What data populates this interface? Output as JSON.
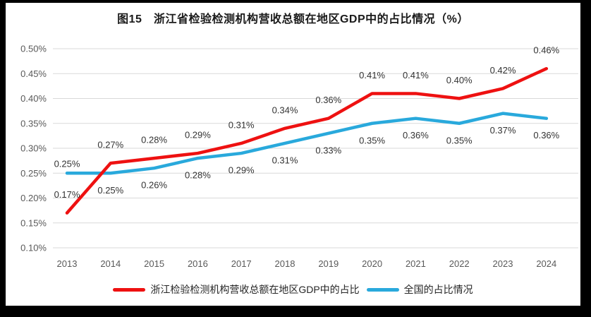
{
  "figure": {
    "title": "图15　浙江省检验检测机构营收总额在地区GDP中的占比情况（%）"
  },
  "colors": {
    "zhejiang": "#EE1111",
    "national": "#29A9DC",
    "gridline": "#D9D9D9",
    "axis_text": "#595959",
    "data_label_text": "#333333",
    "title_text": "#1A1A1A",
    "background": "#FFFFFF",
    "frame": "#000000"
  },
  "chart_data": {
    "type": "line",
    "title": "图15　浙江省检验检测机构营收总额在地区GDP中的占比情况（%）",
    "x": [
      "2013",
      "2014",
      "2015",
      "2016",
      "2017",
      "2018",
      "2019",
      "2020",
      "2021",
      "2022",
      "2023",
      "2024"
    ],
    "series": [
      {
        "name": "浙江检验检测机构营收总额在地区GDP中的占比",
        "color_key": "zhejiang",
        "values": [
          0.17,
          0.27,
          0.28,
          0.29,
          0.31,
          0.34,
          0.36,
          0.41,
          0.41,
          0.4,
          0.42,
          0.46
        ],
        "data_labels": [
          "0.17%",
          "0.27%",
          "0.28%",
          "0.29%",
          "0.31%",
          "0.34%",
          "0.36%",
          "0.41%",
          "0.41%",
          "0.40%",
          "0.42%",
          "0.46%"
        ],
        "label_placement": "above"
      },
      {
        "name": "全国的占比情况",
        "color_key": "national",
        "values": [
          0.25,
          0.25,
          0.26,
          0.28,
          0.29,
          0.31,
          0.33,
          0.35,
          0.36,
          0.35,
          0.37,
          0.36
        ],
        "data_labels": [
          "0.25%",
          "0.25%",
          "0.26%",
          "0.28%",
          "0.29%",
          "0.31%",
          "0.33%",
          "0.35%",
          "0.36%",
          "0.35%",
          "0.37%",
          "0.36%"
        ],
        "label_placement": "below",
        "label_placement_overrides": {
          "0": "above_close"
        }
      }
    ],
    "xlabel": "",
    "ylabel": "",
    "ylim": [
      0.1,
      0.5
    ],
    "ytick_step": 0.05,
    "ytick_labels": [
      "0.10%",
      "0.15%",
      "0.20%",
      "0.25%",
      "0.30%",
      "0.35%",
      "0.40%",
      "0.45%",
      "0.50%"
    ],
    "grid": "horizontal",
    "legend_position": "bottom"
  },
  "legend": {
    "items": [
      {
        "label": "浙江检验检测机构营收总额在地区GDP中的占比",
        "color_key": "zhejiang"
      },
      {
        "label": "全国的占比情况",
        "color_key": "national"
      }
    ]
  }
}
